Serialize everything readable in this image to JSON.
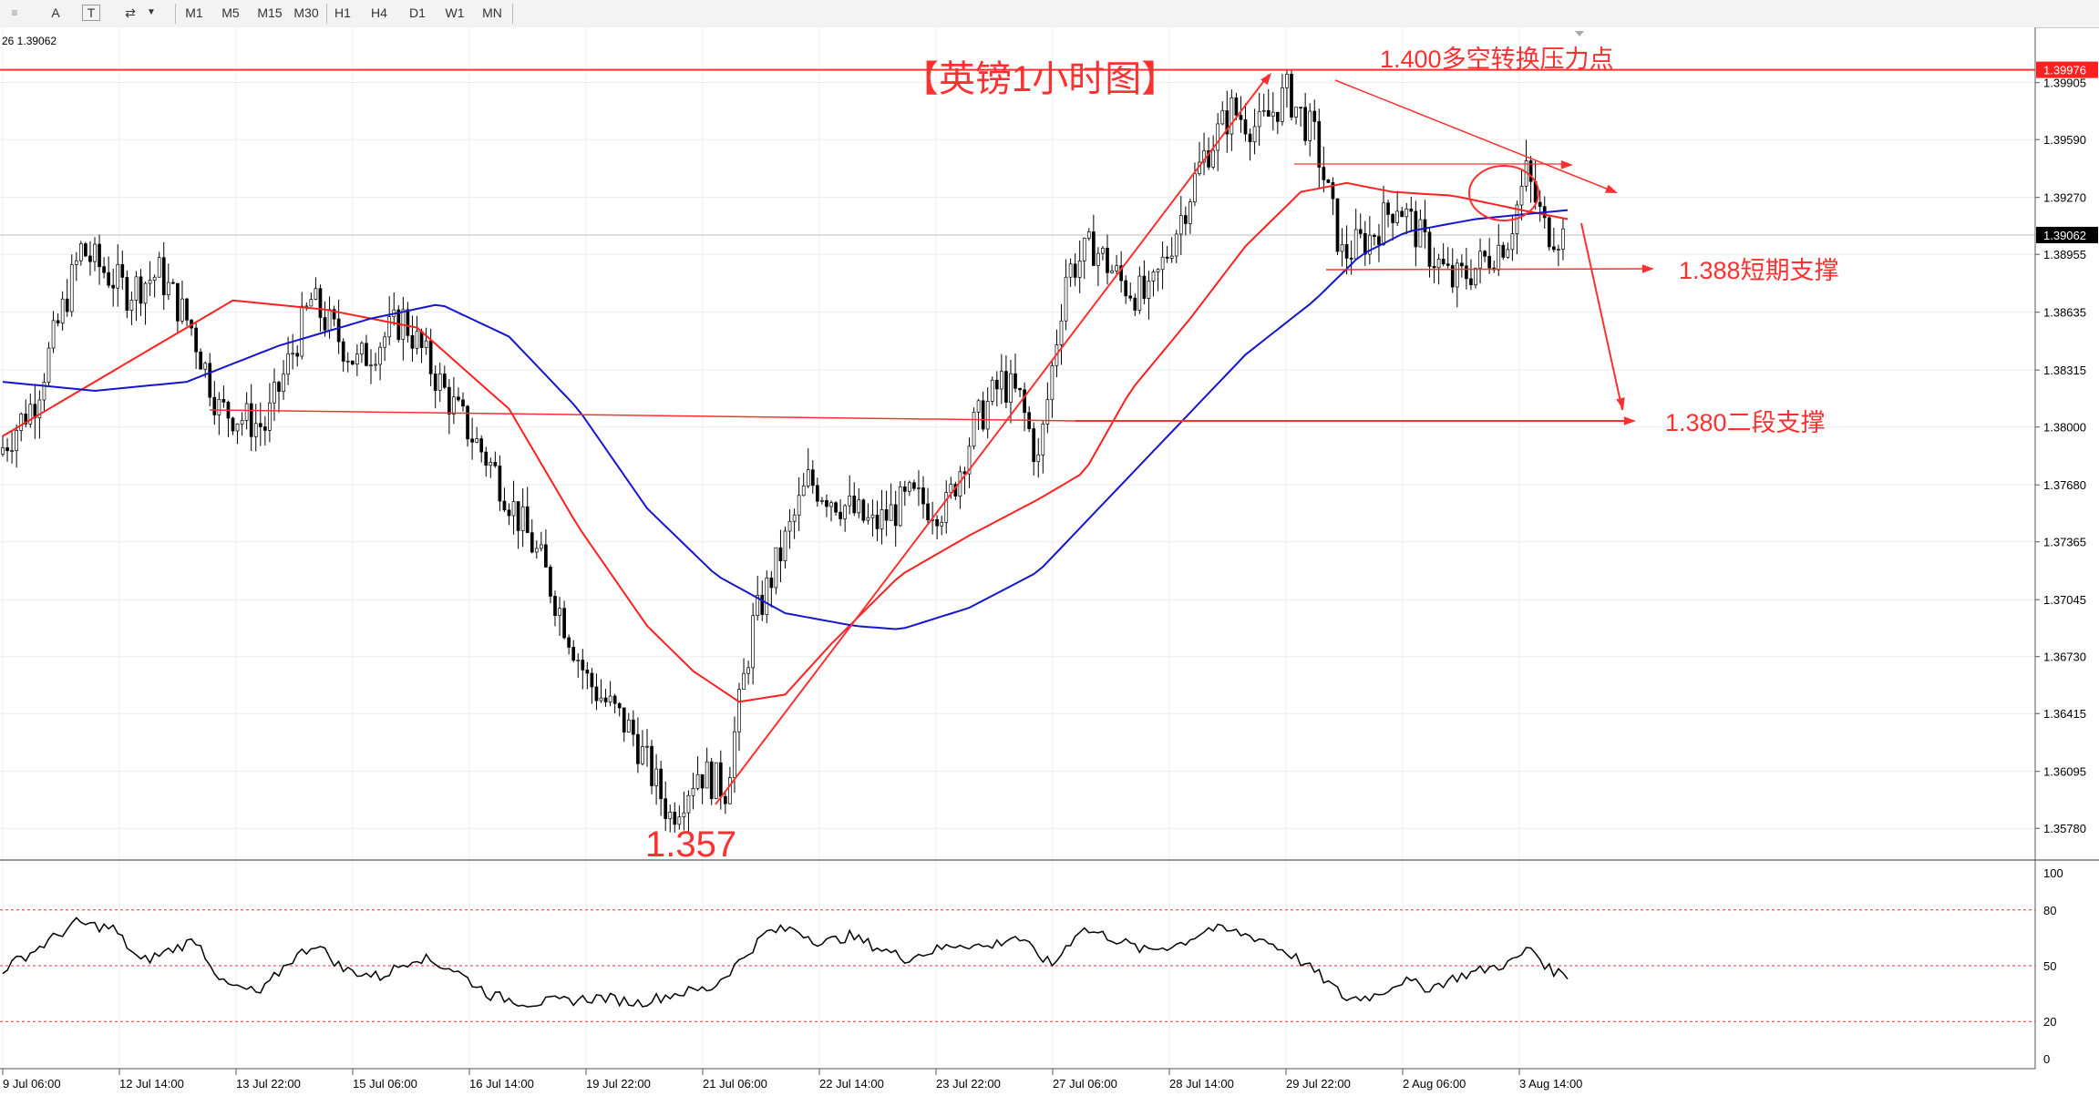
{
  "toolbar": {
    "tools": [
      "A",
      "T",
      "⇄"
    ],
    "timeframes": [
      "M1",
      "M5",
      "M15",
      "M30",
      "H1",
      "H4",
      "D1",
      "W1",
      "MN"
    ]
  },
  "header_readout": "26 1.39062",
  "chart_data": {
    "type": "candlestick",
    "title": "【英镑1小时图】",
    "price_ylim": [
      1.3565,
      1.4011
    ],
    "price_ticks": [
      "1.39905",
      "1.39590",
      "1.39270",
      "1.38955",
      "1.38635",
      "1.38315",
      "1.38000",
      "1.37680",
      "1.37365",
      "1.37045",
      "1.36730",
      "1.36415",
      "1.36095",
      "1.35780"
    ],
    "current_price": "1.39062",
    "resistance_line": "1.39976",
    "x_ticks": [
      "9 Jul 06:00",
      "12 Jul 14:00",
      "13 Jul 22:00",
      "15 Jul 06:00",
      "16 Jul 14:00",
      "19 Jul 22:00",
      "21 Jul 06:00",
      "22 Jul 14:00",
      "23 Jul 22:00",
      "27 Jul 06:00",
      "28 Jul 14:00",
      "29 Jul 22:00",
      "2 Aug 06:00",
      "3 Aug 14:00"
    ],
    "close_waypoints": [
      [
        0,
        1.3785
      ],
      [
        8,
        1.3815
      ],
      [
        18,
        1.3898
      ],
      [
        28,
        1.3875
      ],
      [
        35,
        1.3885
      ],
      [
        42,
        1.3855
      ],
      [
        48,
        1.381
      ],
      [
        58,
        1.38
      ],
      [
        68,
        1.387
      ],
      [
        78,
        1.3835
      ],
      [
        88,
        1.386
      ],
      [
        98,
        1.3815
      ],
      [
        108,
        1.3775
      ],
      [
        118,
        1.3725
      ],
      [
        128,
        1.366
      ],
      [
        138,
        1.363
      ],
      [
        146,
        1.3585
      ],
      [
        152,
        1.361
      ],
      [
        158,
        1.36
      ],
      [
        164,
        1.369
      ],
      [
        170,
        1.373
      ],
      [
        176,
        1.377
      ],
      [
        182,
        1.376
      ],
      [
        190,
        1.3745
      ],
      [
        198,
        1.376
      ],
      [
        206,
        1.3755
      ],
      [
        212,
        1.38
      ],
      [
        218,
        1.3825
      ],
      [
        222,
        1.3815
      ],
      [
        226,
        1.378
      ],
      [
        232,
        1.3885
      ],
      [
        238,
        1.39
      ],
      [
        244,
        1.388
      ],
      [
        250,
        1.387
      ],
      [
        256,
        1.391
      ],
      [
        262,
        1.395
      ],
      [
        268,
        1.3975
      ],
      [
        274,
        1.3965
      ],
      [
        280,
        1.3985
      ],
      [
        286,
        1.396
      ],
      [
        292,
        1.3895
      ],
      [
        298,
        1.3905
      ],
      [
        304,
        1.3925
      ],
      [
        310,
        1.39
      ],
      [
        316,
        1.388
      ],
      [
        322,
        1.389
      ],
      [
        328,
        1.3905
      ],
      [
        332,
        1.394
      ],
      [
        336,
        1.391
      ],
      [
        340,
        1.3906
      ]
    ],
    "ma_red": [
      [
        0,
        1.3795
      ],
      [
        30,
        1.384
      ],
      [
        50,
        1.387
      ],
      [
        70,
        1.3865
      ],
      [
        90,
        1.3855
      ],
      [
        110,
        1.381
      ],
      [
        125,
        1.3745
      ],
      [
        140,
        1.369
      ],
      [
        150,
        1.3665
      ],
      [
        160,
        1.3648
      ],
      [
        170,
        1.3652
      ],
      [
        180,
        1.368
      ],
      [
        195,
        1.3718
      ],
      [
        210,
        1.374
      ],
      [
        225,
        1.376
      ],
      [
        235,
        1.3775
      ],
      [
        245,
        1.382
      ],
      [
        258,
        1.386
      ],
      [
        270,
        1.39
      ],
      [
        282,
        1.393
      ],
      [
        292,
        1.3935
      ],
      [
        302,
        1.393
      ],
      [
        315,
        1.3928
      ],
      [
        330,
        1.392
      ],
      [
        340,
        1.3915
      ]
    ],
    "ma_blue": [
      [
        0,
        1.3825
      ],
      [
        20,
        1.382
      ],
      [
        40,
        1.3825
      ],
      [
        60,
        1.3845
      ],
      [
        80,
        1.386
      ],
      [
        95,
        1.3868
      ],
      [
        110,
        1.385
      ],
      [
        125,
        1.381
      ],
      [
        140,
        1.3755
      ],
      [
        155,
        1.3718
      ],
      [
        170,
        1.3697
      ],
      [
        185,
        1.369
      ],
      [
        195,
        1.3688
      ],
      [
        210,
        1.37
      ],
      [
        225,
        1.372
      ],
      [
        240,
        1.376
      ],
      [
        255,
        1.38
      ],
      [
        270,
        1.384
      ],
      [
        285,
        1.387
      ],
      [
        295,
        1.3895
      ],
      [
        305,
        1.3908
      ],
      [
        320,
        1.3915
      ],
      [
        340,
        1.392
      ]
    ],
    "rsi_ylim": [
      0,
      100
    ],
    "rsi_ticks": [
      "100",
      "80",
      "50",
      "20",
      "0"
    ],
    "rsi_waypoints": [
      [
        0,
        48
      ],
      [
        8,
        60
      ],
      [
        16,
        73
      ],
      [
        24,
        70
      ],
      [
        30,
        52
      ],
      [
        36,
        58
      ],
      [
        42,
        64
      ],
      [
        48,
        40
      ],
      [
        56,
        35
      ],
      [
        62,
        52
      ],
      [
        68,
        62
      ],
      [
        74,
        48
      ],
      [
        82,
        44
      ],
      [
        90,
        55
      ],
      [
        98,
        48
      ],
      [
        106,
        34
      ],
      [
        114,
        30
      ],
      [
        122,
        31
      ],
      [
        130,
        33
      ],
      [
        138,
        30
      ],
      [
        146,
        35
      ],
      [
        154,
        38
      ],
      [
        160,
        52
      ],
      [
        166,
        68
      ],
      [
        172,
        70
      ],
      [
        178,
        62
      ],
      [
        184,
        66
      ],
      [
        190,
        60
      ],
      [
        196,
        54
      ],
      [
        202,
        58
      ],
      [
        208,
        62
      ],
      [
        214,
        60
      ],
      [
        220,
        66
      ],
      [
        228,
        50
      ],
      [
        234,
        70
      ],
      [
        240,
        66
      ],
      [
        248,
        58
      ],
      [
        256,
        62
      ],
      [
        262,
        70
      ],
      [
        268,
        68
      ],
      [
        274,
        64
      ],
      [
        280,
        56
      ],
      [
        286,
        45
      ],
      [
        292,
        32
      ],
      [
        298,
        34
      ],
      [
        304,
        42
      ],
      [
        310,
        38
      ],
      [
        316,
        44
      ],
      [
        322,
        48
      ],
      [
        328,
        52
      ],
      [
        332,
        60
      ],
      [
        336,
        48
      ],
      [
        340,
        45
      ]
    ],
    "annotations": {
      "low_label": "1.357",
      "resistance_label": "1.400多空转换压力点",
      "support1_label": "1.388短期支撑",
      "support2_label": "1.380二段支撑"
    },
    "colors": {
      "up": "#000000",
      "down": "#000000",
      "ma_fast": "#ff2020",
      "ma_slow": "#1515cc",
      "annotation": "#ff3030",
      "rsi": "#000000"
    }
  }
}
